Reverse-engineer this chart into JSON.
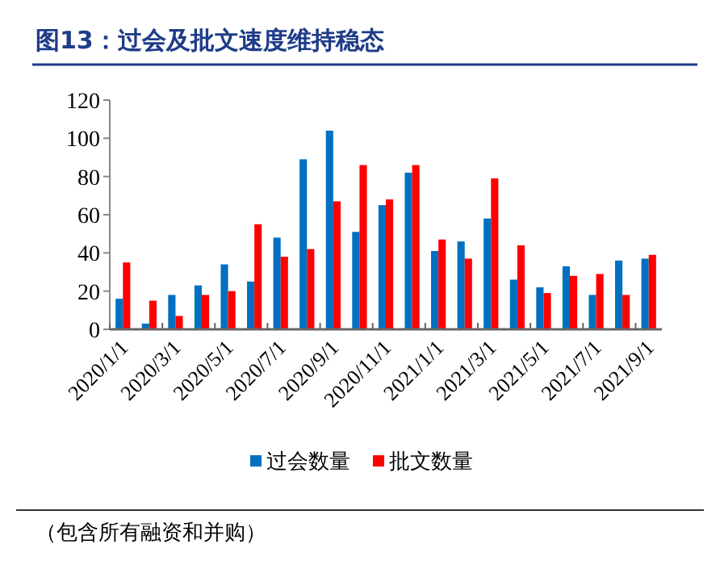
{
  "chart_data": {
    "type": "bar",
    "title": "图13：过会及批文速度维持稳态",
    "categories": [
      "2020/1/1",
      null,
      "2020/3/1",
      null,
      "2020/5/1",
      null,
      "2020/7/1",
      null,
      "2020/9/1",
      null,
      "2020/11/1",
      null,
      "2021/1/1",
      null,
      "2021/3/1",
      null,
      "2021/5/1",
      null,
      "2021/7/1",
      null,
      "2021/9/1"
    ],
    "series": [
      {
        "name": "过会数量",
        "color": "#0070c0",
        "values": [
          16,
          3,
          18,
          23,
          34,
          25,
          48,
          89,
          104,
          51,
          65,
          82,
          41,
          46,
          58,
          26,
          22,
          33,
          18,
          36,
          37
        ]
      },
      {
        "name": "批文数量",
        "color": "#ff0000",
        "values": [
          35,
          15,
          7,
          18,
          20,
          55,
          38,
          42,
          67,
          86,
          68,
          86,
          47,
          37,
          79,
          44,
          19,
          28,
          29,
          18,
          39
        ]
      }
    ],
    "ylim": [
      0,
      120
    ],
    "yticks": [
      0,
      20,
      40,
      60,
      80,
      100,
      120
    ],
    "grid": false,
    "legend": "bottom",
    "annotations": [
      "（包含所有融资和并购）"
    ]
  }
}
